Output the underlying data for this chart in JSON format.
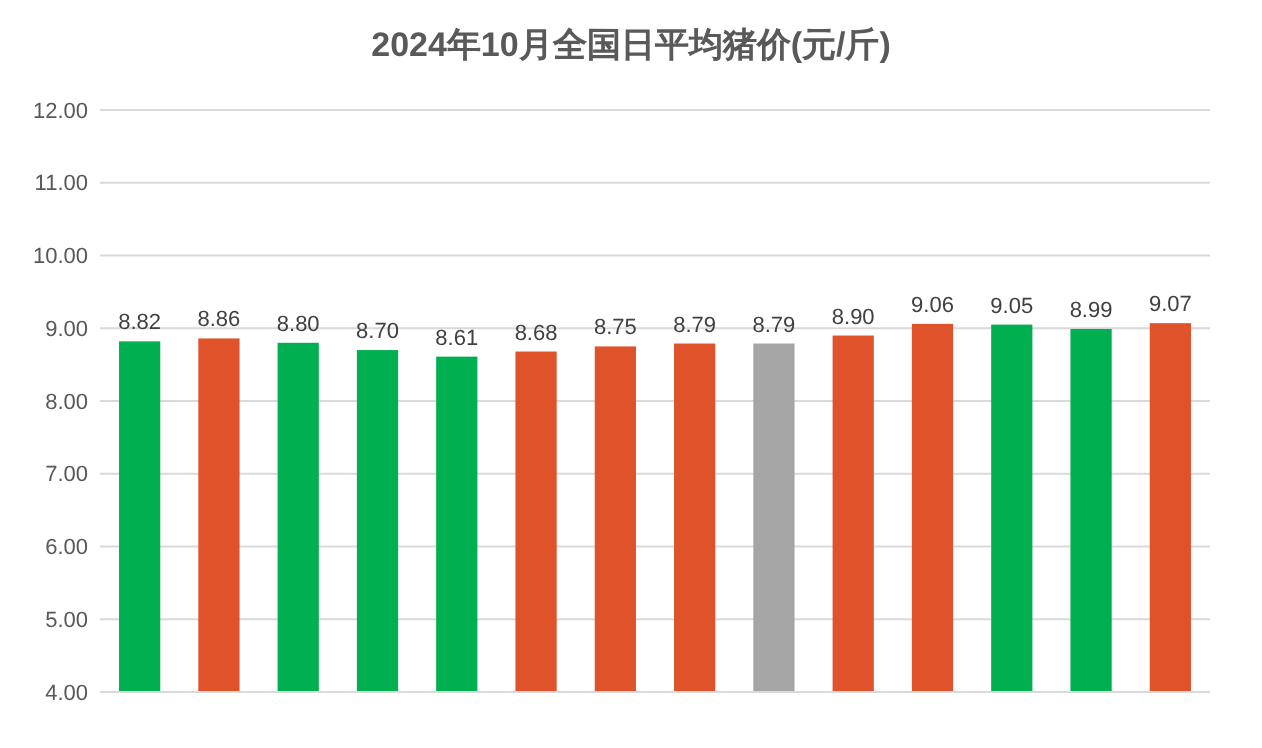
{
  "chart_data": {
    "type": "bar",
    "title": "2024年10月全国日平均猪价(元/斤)",
    "categories": [
      null,
      null,
      null,
      null,
      null,
      null,
      null,
      null,
      null,
      null,
      null,
      null,
      null,
      null
    ],
    "values": [
      8.82,
      8.86,
      8.8,
      8.7,
      8.61,
      8.68,
      8.75,
      8.79,
      8.79,
      8.9,
      9.06,
      9.05,
      8.99,
      9.07
    ],
    "colors": [
      "#00b050",
      "#e0532a",
      "#00b050",
      "#00b050",
      "#00b050",
      "#e0532a",
      "#e0532a",
      "#e0532a",
      "#a5a5a5",
      "#e0532a",
      "#e0532a",
      "#00b050",
      "#00b050",
      "#e0532a"
    ],
    "value_labels": [
      "8.82",
      "8.86",
      "8.80",
      "8.70",
      "8.61",
      "8.68",
      "8.75",
      "8.79",
      "8.79",
      "8.90",
      "9.06",
      "9.05",
      "8.99",
      "9.07"
    ],
    "ylim": [
      4,
      12
    ],
    "yticks": [
      {
        "value": 4,
        "label": "4.00"
      },
      {
        "value": 5,
        "label": "5.00"
      },
      {
        "value": 6,
        "label": "6.00"
      },
      {
        "value": 7,
        "label": "7.00"
      },
      {
        "value": 8,
        "label": "8.00"
      },
      {
        "value": 9,
        "label": "9.00"
      },
      {
        "value": 10,
        "label": "10.00"
      },
      {
        "value": 11,
        "label": "11.00"
      },
      {
        "value": 12,
        "label": "12.00"
      }
    ],
    "grid": "y"
  }
}
